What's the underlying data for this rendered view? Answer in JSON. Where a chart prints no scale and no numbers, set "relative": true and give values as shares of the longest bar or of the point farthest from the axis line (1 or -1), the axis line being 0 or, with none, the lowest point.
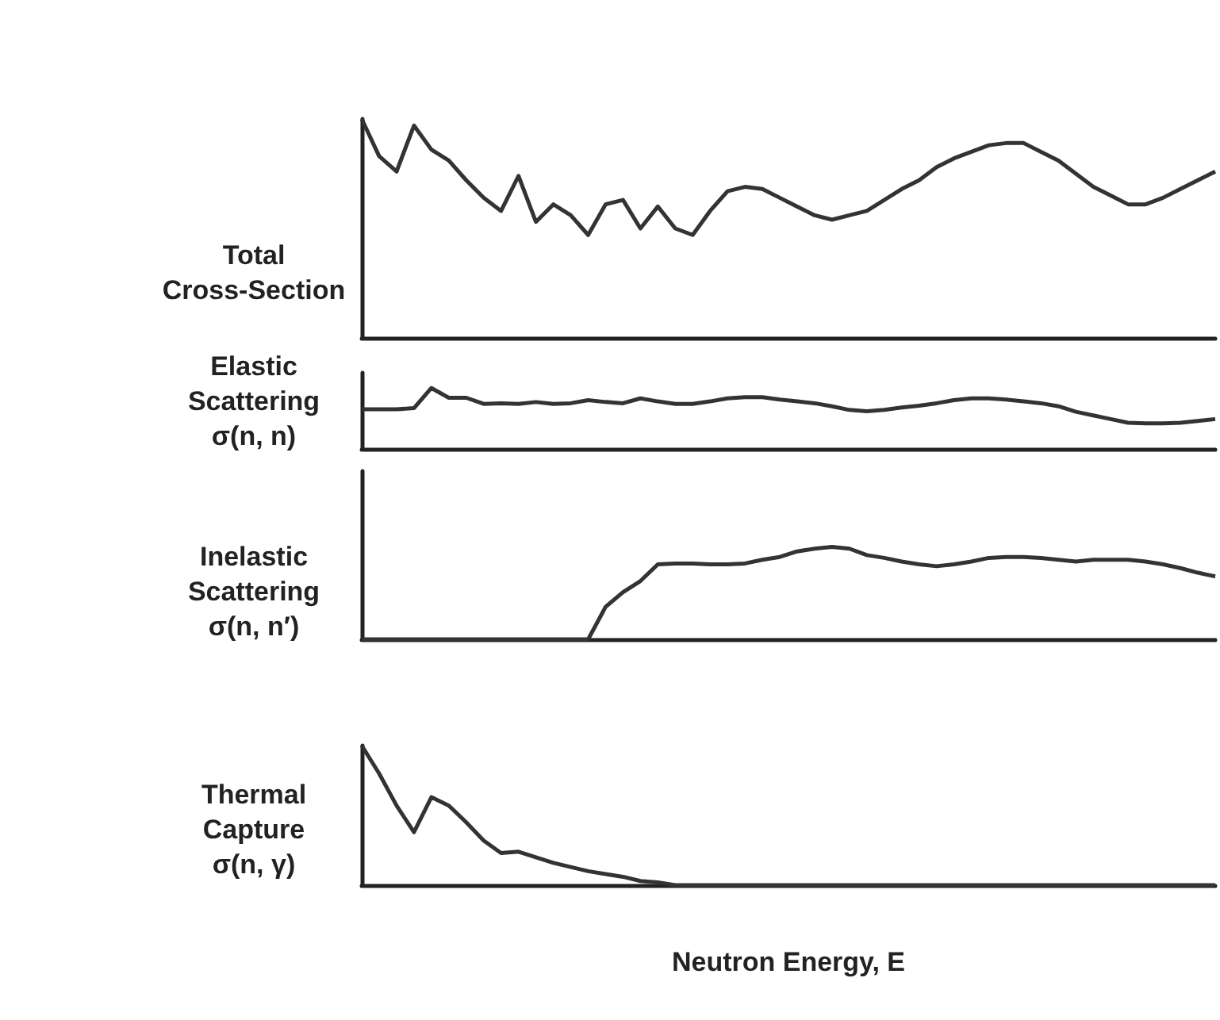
{
  "chart_data": [
    {
      "type": "line",
      "relative": true,
      "ylabel": "Total\nCross-Section",
      "color": "#333333",
      "marker": "none",
      "categories": [
        null,
        null,
        null,
        null,
        null,
        null,
        null,
        null,
        null,
        null,
        null,
        null,
        null,
        null,
        null,
        null,
        null,
        null,
        null,
        null,
        null,
        null,
        null,
        null,
        null,
        null,
        null,
        null,
        null,
        null,
        null,
        null,
        null,
        null,
        null,
        null,
        null,
        null,
        null,
        null,
        null,
        null,
        null,
        null,
        null,
        null,
        null,
        null,
        null,
        null
      ],
      "values": [
        1,
        0.83,
        0.76,
        0.97,
        0.86,
        0.81,
        0.72,
        0.64,
        0.58,
        0.74,
        0.53,
        0.61,
        0.56,
        0.47,
        0.61,
        0.63,
        0.5,
        0.6,
        0.5,
        0.47,
        0.58,
        0.67,
        0.69,
        0.68,
        0.64,
        0.6,
        0.56,
        0.54,
        0.56,
        0.58,
        0.63,
        0.68,
        0.72,
        0.78,
        0.82,
        0.85,
        0.88,
        0.89,
        0.89,
        0.85,
        0.81,
        0.75,
        0.69,
        0.65,
        0.61,
        0.61,
        0.64,
        0.68,
        0.72,
        0.76
      ]
    },
    {
      "type": "line",
      "relative": true,
      "ylabel": "Elastic\nScattering\nσ(n, n)",
      "color": "#333333",
      "marker": "none",
      "categories": [
        null,
        null,
        null,
        null,
        null,
        null,
        null,
        null,
        null,
        null,
        null,
        null,
        null,
        null,
        null,
        null,
        null,
        null,
        null,
        null,
        null,
        null,
        null,
        null,
        null,
        null,
        null,
        null,
        null,
        null,
        null,
        null,
        null,
        null,
        null,
        null,
        null,
        null,
        null,
        null,
        null,
        null,
        null,
        null,
        null,
        null,
        null,
        null,
        null,
        null
      ],
      "values": [
        0.65,
        0.65,
        0.65,
        0.67,
        1,
        0.84,
        0.84,
        0.74,
        0.75,
        0.74,
        0.77,
        0.74,
        0.75,
        0.8,
        0.77,
        0.75,
        0.83,
        0.78,
        0.74,
        0.74,
        0.78,
        0.83,
        0.85,
        0.85,
        0.81,
        0.78,
        0.75,
        0.7,
        0.64,
        0.62,
        0.64,
        0.68,
        0.71,
        0.75,
        0.8,
        0.83,
        0.83,
        0.81,
        0.78,
        0.75,
        0.7,
        0.61,
        0.55,
        0.49,
        0.43,
        0.42,
        0.42,
        0.43,
        0.46,
        0.49
      ]
    },
    {
      "type": "line",
      "relative": true,
      "ylabel": "Inelastic\nScattering\nσ(n, n′)",
      "color": "#333333",
      "marker": "none",
      "categories": [
        null,
        null,
        null,
        null,
        null,
        null,
        null,
        null,
        null,
        null,
        null,
        null,
        null,
        null,
        null,
        null,
        null,
        null,
        null,
        null,
        null,
        null,
        null,
        null,
        null,
        null,
        null,
        null,
        null,
        null,
        null,
        null,
        null,
        null,
        null,
        null,
        null,
        null,
        null,
        null,
        null,
        null,
        null,
        null,
        null,
        null,
        null,
        null,
        null,
        null
      ],
      "values": [
        0,
        0,
        0,
        0,
        0,
        0,
        0,
        0,
        0,
        0,
        0,
        0,
        0,
        0,
        0.35,
        0.51,
        0.63,
        0.81,
        0.82,
        0.82,
        0.81,
        0.81,
        0.82,
        0.86,
        0.89,
        0.95,
        0.98,
        1,
        0.98,
        0.91,
        0.88,
        0.84,
        0.81,
        0.79,
        0.81,
        0.84,
        0.88,
        0.89,
        0.89,
        0.88,
        0.86,
        0.84,
        0.86,
        0.86,
        0.86,
        0.84,
        0.81,
        0.77,
        0.72,
        0.68
      ]
    },
    {
      "type": "line",
      "relative": true,
      "ylabel": "Thermal\nCapture\nσ(n, γ)",
      "xlabel": "Neutron Energy, E",
      "color": "#333333",
      "marker": "none",
      "categories": [
        null,
        null,
        null,
        null,
        null,
        null,
        null,
        null,
        null,
        null,
        null,
        null,
        null,
        null,
        null,
        null,
        null,
        null,
        null,
        null,
        null,
        null,
        null,
        null,
        null,
        null,
        null,
        null,
        null,
        null,
        null,
        null,
        null,
        null,
        null,
        null,
        null,
        null,
        null,
        null,
        null,
        null,
        null,
        null,
        null,
        null,
        null,
        null,
        null,
        null
      ],
      "values": [
        1,
        0.8,
        0.57,
        0.38,
        0.63,
        0.57,
        0.45,
        0.32,
        0.23,
        0.24,
        0.2,
        0.16,
        0.13,
        0.1,
        0.08,
        0.06,
        0.03,
        0.02,
        0,
        0,
        0,
        0,
        0,
        0,
        0,
        0,
        0,
        0,
        0,
        0,
        0,
        0,
        0,
        0,
        0,
        0,
        0,
        0,
        0,
        0,
        0,
        0,
        0,
        0,
        0,
        0,
        0,
        0,
        0,
        0
      ]
    }
  ]
}
